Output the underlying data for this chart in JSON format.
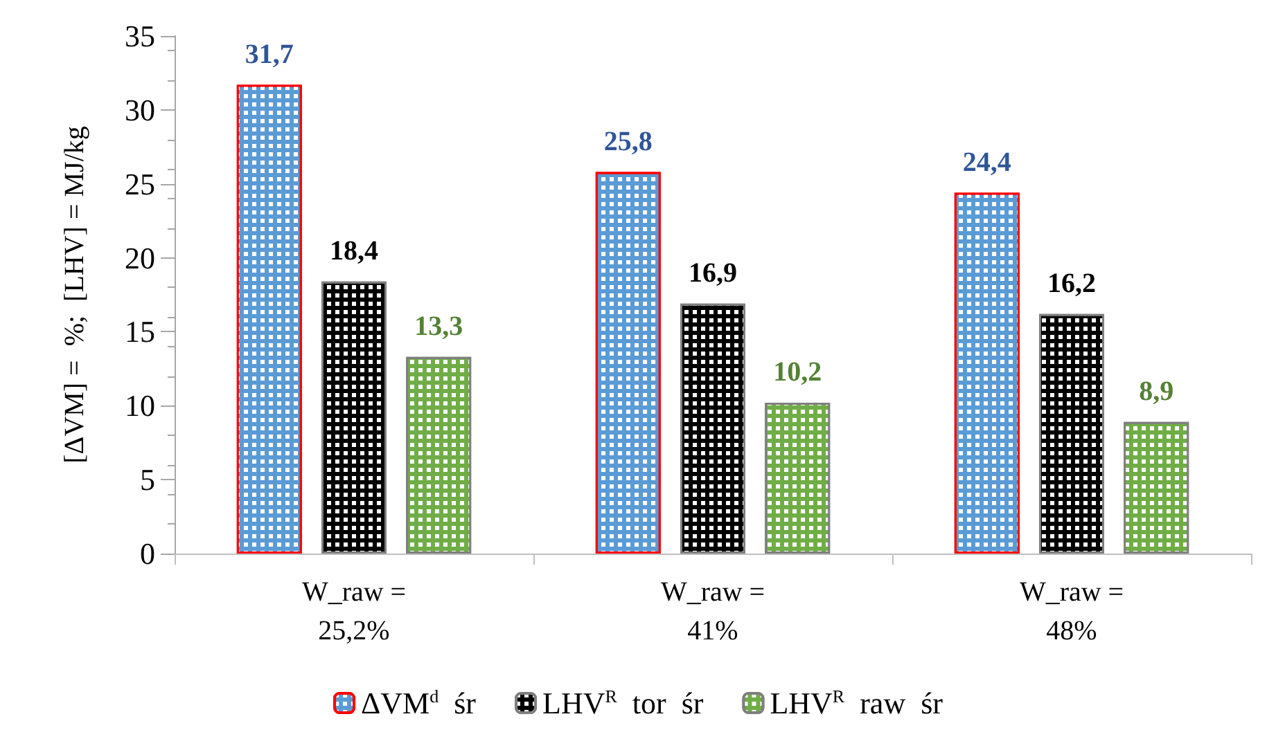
{
  "chart_data": {
    "type": "bar",
    "ylabel": "[ΔVM] =  %;  [LHV] = MJ/kg",
    "categories": [
      "W_raw =\n25,2%",
      "W_raw =\n41%",
      "W_raw =\n48%"
    ],
    "series": [
      {
        "name": "ΔVM$^{d}$  śr",
        "color": "#5b9bd5",
        "values": [
          31.7,
          25.8,
          24.4
        ],
        "value_labels": [
          "31,7",
          "25,8",
          "24,4"
        ]
      },
      {
        "name": "LHV$^{R}$  tor  śr",
        "color": "#000000",
        "values": [
          18.4,
          16.9,
          16.2
        ],
        "value_labels": [
          "18,4",
          "16,9",
          "16,2"
        ]
      },
      {
        "name": "LHV$^{R}$  raw  śr",
        "color": "#70ad47",
        "values": [
          13.3,
          10.2,
          8.9
        ],
        "value_labels": [
          "13,3",
          "10,2",
          "8,9"
        ]
      }
    ],
    "ylim": [
      0,
      35
    ],
    "yticks": [
      0,
      5,
      10,
      15,
      20,
      25,
      30,
      35
    ],
    "grid": false,
    "legend": "bottom"
  }
}
